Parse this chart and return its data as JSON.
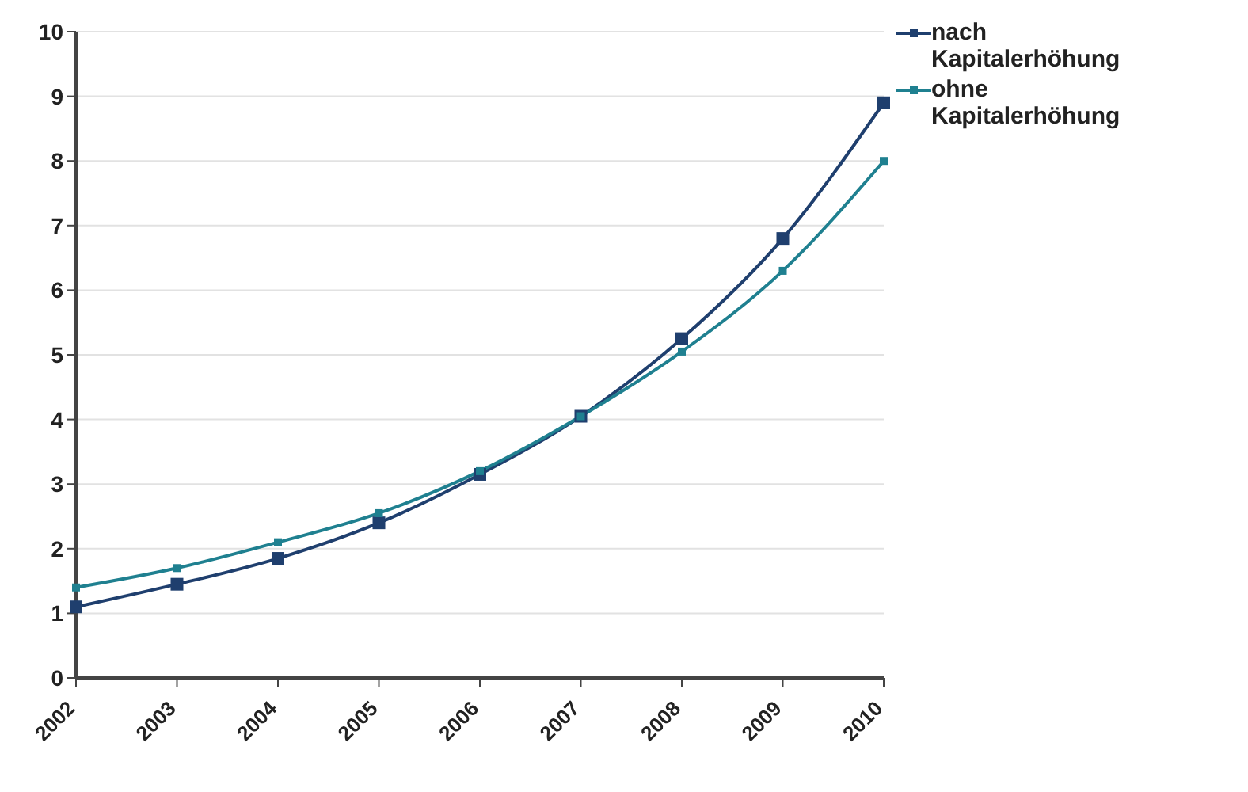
{
  "chart_data": {
    "type": "line",
    "categories": [
      "2002",
      "2003",
      "2004",
      "2005",
      "2006",
      "2007",
      "2008",
      "2009",
      "2010"
    ],
    "series": [
      {
        "name": "nach Kapitalerhöhung",
        "color": "#1f3f6e",
        "values": [
          1.1,
          1.45,
          1.85,
          2.4,
          3.15,
          4.05,
          5.25,
          6.8,
          8.9
        ]
      },
      {
        "name": "ohne Kapitalerhöhung",
        "color": "#1f8090",
        "values": [
          1.4,
          1.7,
          2.1,
          2.55,
          3.2,
          4.05,
          5.05,
          6.3,
          8.0
        ]
      }
    ],
    "ylim": [
      0,
      10
    ],
    "yticks": [
      0,
      1,
      2,
      3,
      4,
      5,
      6,
      7,
      8,
      9,
      10
    ],
    "grid": "y",
    "legend": "top right",
    "marker": "square",
    "line_style": "solid"
  }
}
